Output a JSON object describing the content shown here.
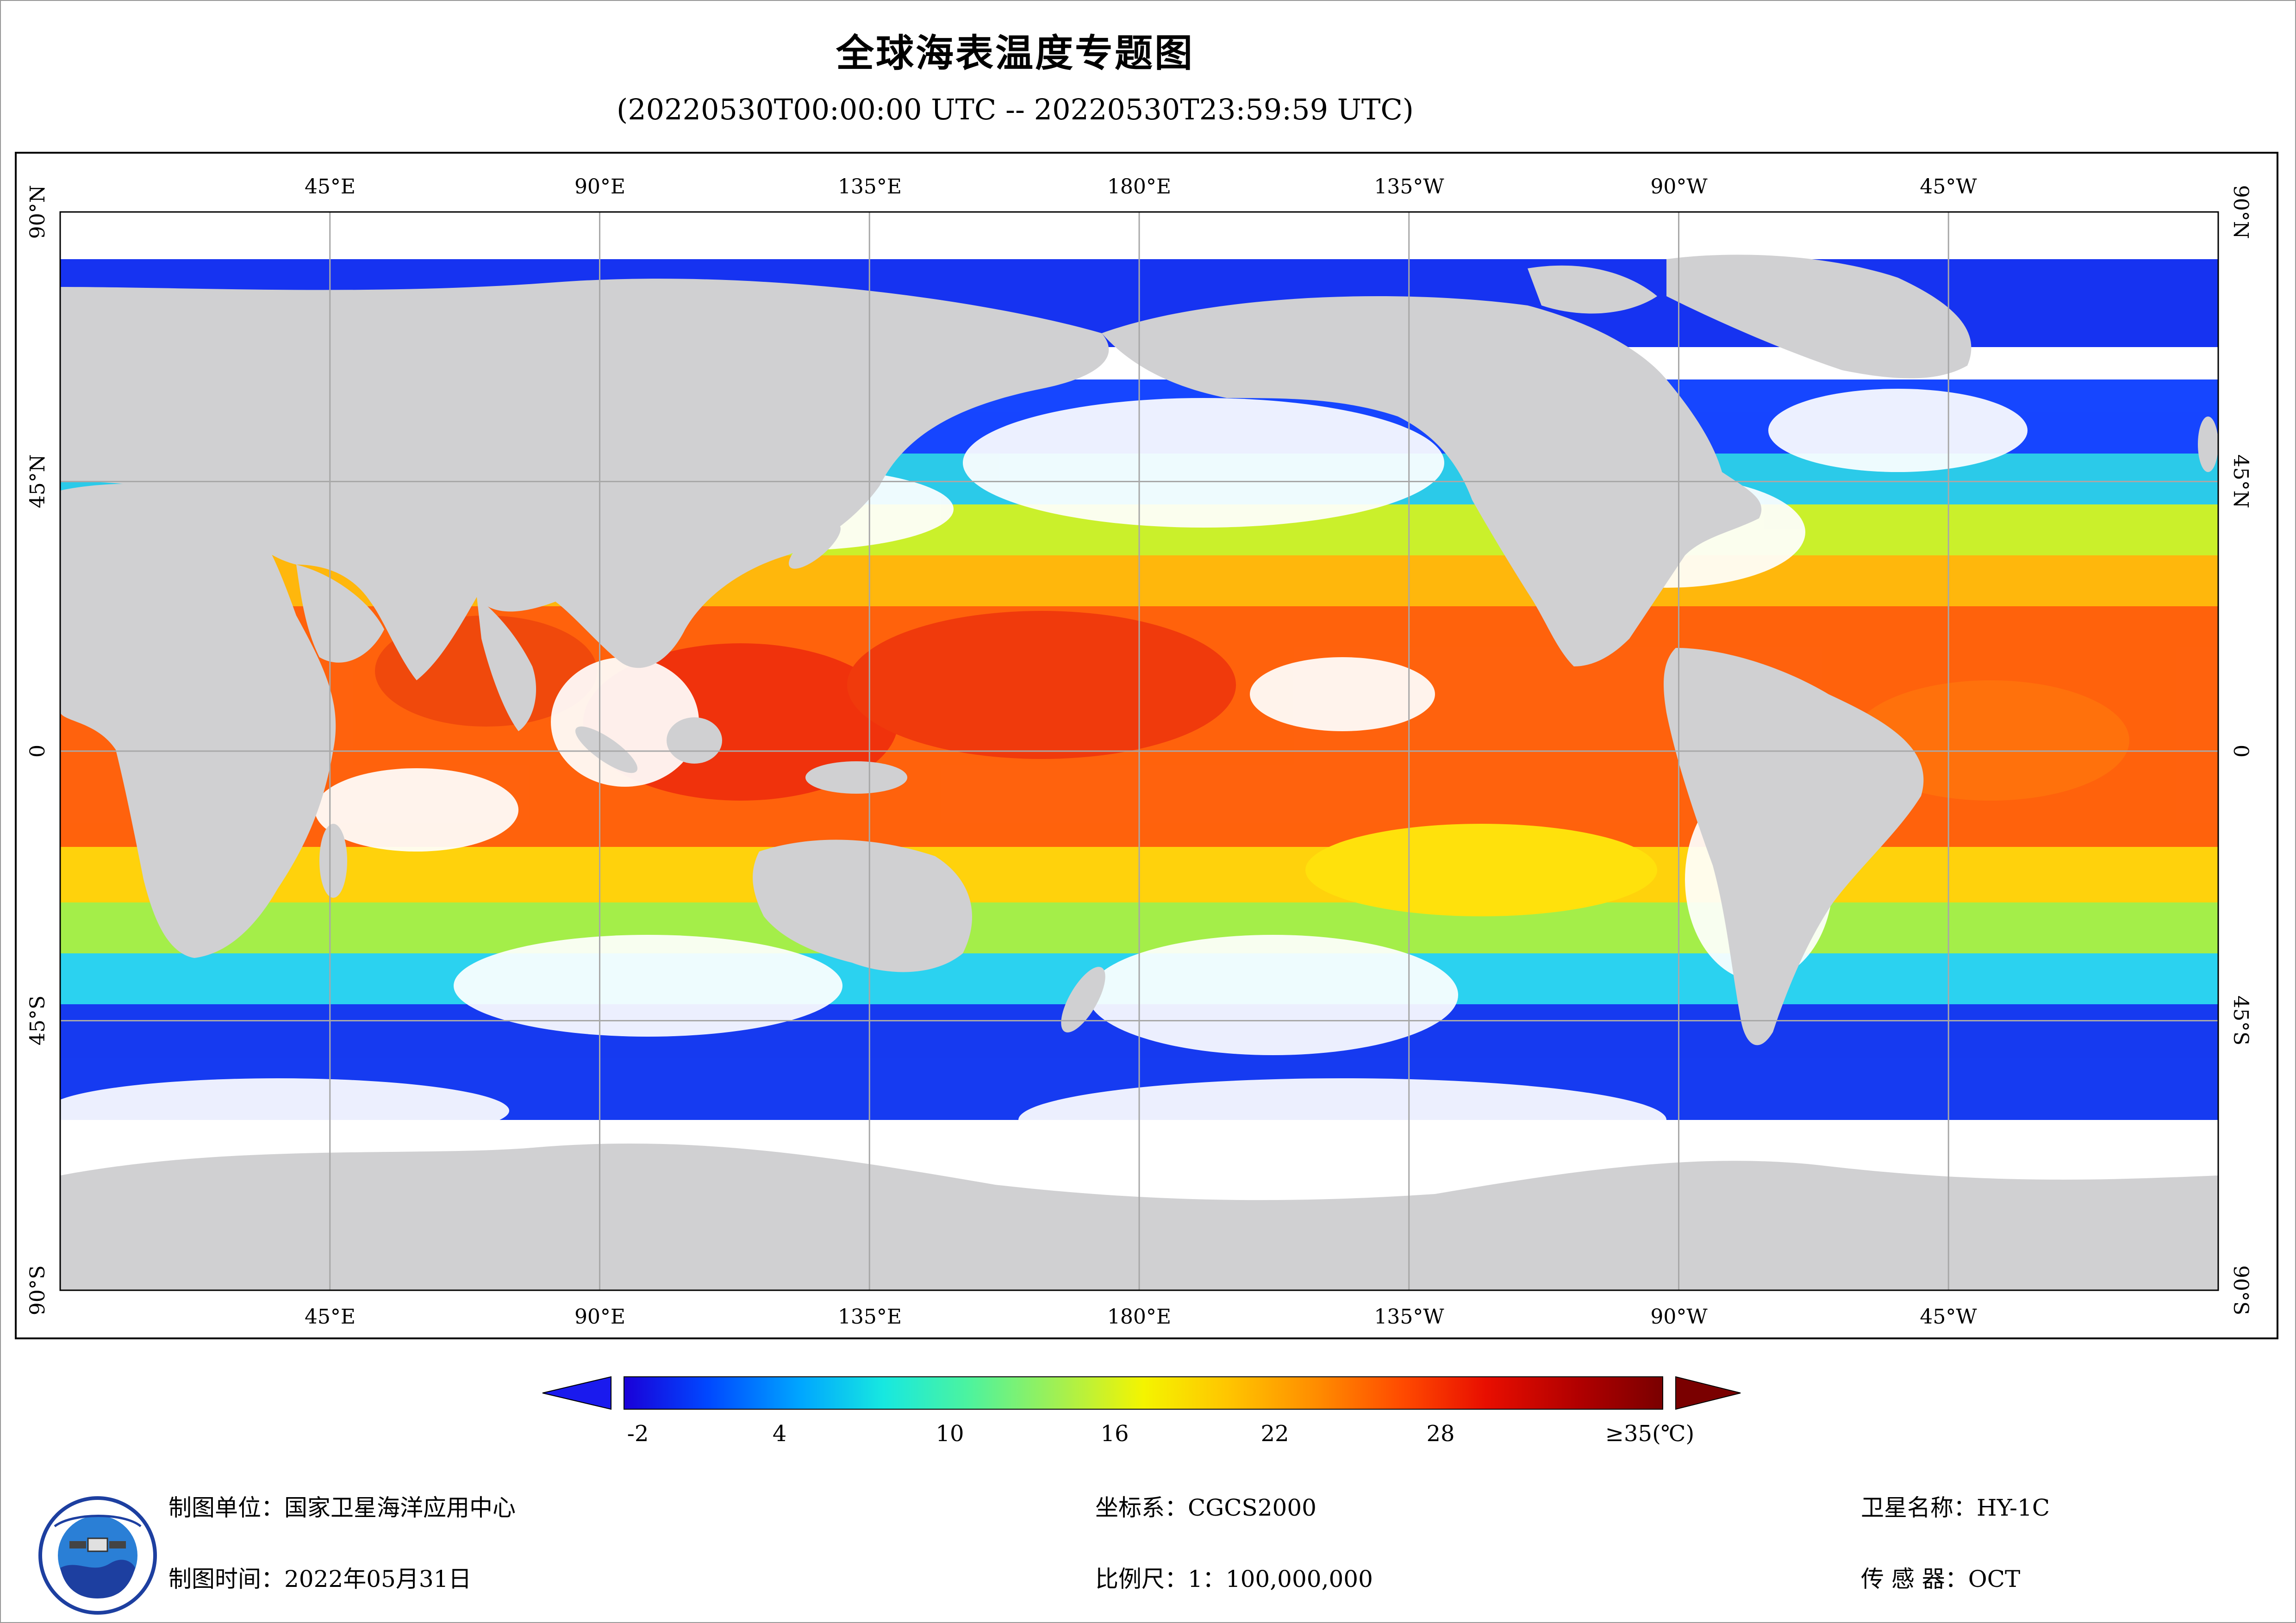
{
  "title": "全球海表温度专题图",
  "subtitle": "(20220530T00:00:00 UTC -- 20220530T23:59:59 UTC)",
  "map": {
    "lon_labels_top": [
      "45°E",
      "90°E",
      "135°E",
      "180°E",
      "135°W",
      "90°W",
      "45°W"
    ],
    "lon_labels_bottom": [
      "45°E",
      "90°E",
      "135°E",
      "180°E",
      "135°W",
      "90°W",
      "45°W"
    ],
    "lat_labels_left": [
      "90°N",
      "45°N",
      "0",
      "45°S",
      "90°S"
    ],
    "lat_labels_right": [
      "90°N",
      "45°N",
      "0",
      "45°S",
      "90°S"
    ],
    "lon_range": [
      0,
      360
    ],
    "lat_range": [
      -90,
      90
    ],
    "grid": true,
    "projection": "equirectangular",
    "colors": {
      "land": "#d0d0d2",
      "no_data": "#ffffff",
      "grid": "#a8a8a8"
    }
  },
  "legend": {
    "tick_labels": [
      "-2",
      "4",
      "10",
      "16",
      "22",
      "28",
      "≥35(℃)"
    ],
    "tick_values": [
      -2,
      4,
      10,
      16,
      22,
      28,
      35
    ],
    "range": [
      -2,
      35
    ],
    "colormap": [
      "#1a00d8",
      "#0047ff",
      "#00a6ff",
      "#17e8e0",
      "#4bf3a0",
      "#a4f050",
      "#f4f400",
      "#ffc600",
      "#ff8a00",
      "#ff4a00",
      "#e80e00",
      "#b00000",
      "#7a0000"
    ],
    "underflow_color": "#1a1aee",
    "overflow_color": "#7a0000"
  },
  "footer": {
    "unit_label": "制图单位：",
    "unit_value": "国家卫星海洋应用中心",
    "time_label": "制图时间：",
    "time_value": "2022年05月31日",
    "crs_label": "坐标系：",
    "crs_value": "CGCS2000",
    "scale_label": "比例尺：",
    "scale_value": "1：100,000,000",
    "sat_label": "卫星名称：",
    "sat_value": "HY-1C",
    "sensor_label": "传 感 器：",
    "sensor_value": "OCT"
  }
}
